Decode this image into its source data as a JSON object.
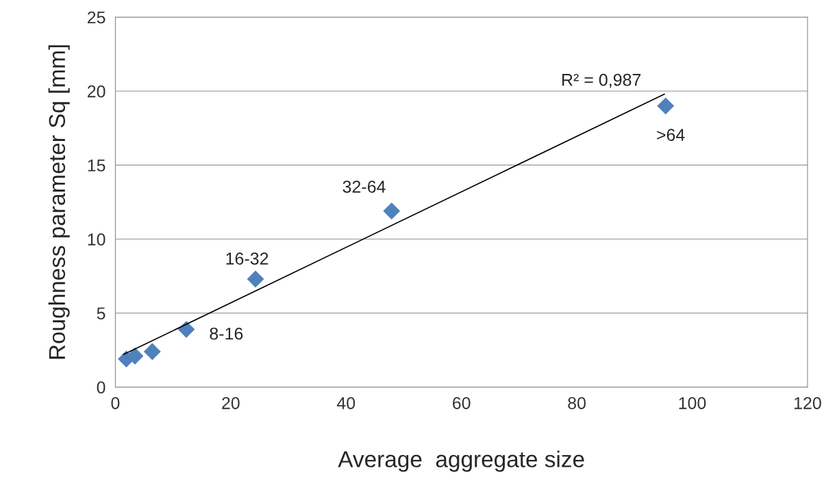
{
  "chart_data": {
    "type": "scatter",
    "xlabel": "Average  aggregate size",
    "ylabel": "Roughness parameter Sq [mm]",
    "series": [
      {
        "color": "#4f81bd",
        "marker": "diamond",
        "x": [
          1.9,
          3.4,
          6.4,
          12.3,
          24.3,
          47.9,
          95.4
        ],
        "values": [
          1.9,
          2.1,
          2.4,
          3.9,
          7.3,
          11.9,
          19.0
        ]
      },
      {
        "type": "line",
        "color": "#000000",
        "marker": "none",
        "line_style": "solid",
        "x": [
          1.4,
          95.2
        ],
        "values": [
          2.2,
          19.8
        ]
      }
    ],
    "annotations": [
      {
        "text": "8-16",
        "x": 12.3,
        "y": 3.9
      },
      {
        "text": "16-32",
        "x": 24.3,
        "y": 7.3
      },
      {
        "text": "32-64",
        "x": 47.9,
        "y": 11.9
      },
      {
        "text": ">64",
        "x": 95.4,
        "y": 19.0
      },
      "R² = 0,987"
    ],
    "xlim": [
      0,
      120
    ],
    "xticks": [
      0,
      20,
      40,
      60,
      80,
      100,
      120
    ],
    "ylim": [
      0,
      25
    ],
    "yticks": [
      0,
      5,
      10,
      15,
      20,
      25
    ],
    "grid": "y",
    "legend": false
  }
}
